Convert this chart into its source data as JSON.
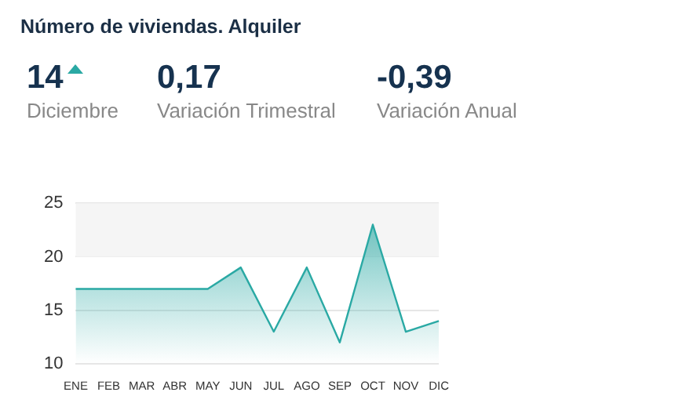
{
  "chart_data": {
    "type": "area",
    "title": "Número de viviendas. Alquiler",
    "annotations": [
      "14",
      "Diciembre",
      "0,17",
      "Variación Trimestral",
      "-0,39",
      "Variación Anual"
    ],
    "categories": [
      "ENE",
      "FEB",
      "MAR",
      "ABR",
      "MAY",
      "JUN",
      "JUL",
      "AGO",
      "SEP",
      "OCT",
      "NOV",
      "DIC"
    ],
    "series": [
      {
        "color": "#2aa9a4",
        "values": [
          17,
          17,
          17,
          17,
          17,
          19,
          13,
          19,
          12,
          23,
          13,
          14
        ]
      }
    ],
    "ylim": [
      10,
      25
    ],
    "yticks": [
      10,
      15,
      20,
      25
    ],
    "grid": "y",
    "bands": [
      {
        "axis": "y",
        "from": 20,
        "to": 25,
        "color": "#f5f5f5"
      }
    ],
    "marker": "none",
    "line_style": "solid"
  }
}
